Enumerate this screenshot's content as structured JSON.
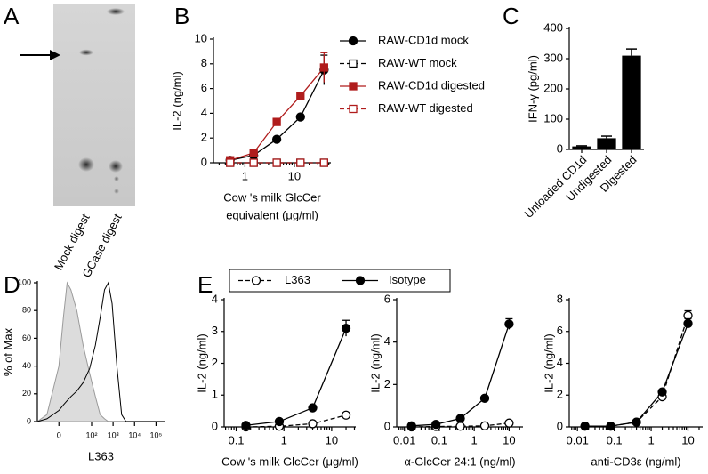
{
  "panel_a": {
    "panel_label": "A",
    "lanes": [
      "Mock digest",
      "GCase digest"
    ]
  },
  "chart_data": [
    {
      "type": "line",
      "panel_label": "B",
      "ylabel": "IL-2 (ng/ml)",
      "xlabel": [
        "Cow 's milk GlcCer",
        "equivalent (μg/ml)"
      ],
      "xscale": "log",
      "xlim": [
        0.23,
        55
      ],
      "xticks": [
        1,
        10
      ],
      "ylim": [
        0,
        10
      ],
      "yticks": [
        0,
        2,
        4,
        6,
        8,
        10
      ],
      "legend": "right",
      "x": [
        0.5,
        1.5,
        4.4,
        13.3,
        40
      ],
      "series": [
        {
          "name": "RAW-CD1d mock",
          "color": "#000000",
          "marker": "circle",
          "filled": true,
          "line_style": "solid",
          "values": [
            0.2,
            0.6,
            1.9,
            3.7,
            7.5
          ],
          "errors": [
            null,
            null,
            null,
            null,
            1.2
          ]
        },
        {
          "name": "RAW-WT mock",
          "color": "#000000",
          "marker": "square",
          "filled": false,
          "line_style": "dashed",
          "values": [
            0,
            0,
            0,
            0,
            0
          ],
          "errors": [
            null,
            null,
            null,
            null,
            null
          ]
        },
        {
          "name": "RAW-CD1d digested",
          "color": "#b01c1c",
          "marker": "square",
          "filled": true,
          "line_style": "solid",
          "values": [
            0.2,
            0.8,
            3.3,
            5.4,
            7.7
          ],
          "errors": [
            null,
            null,
            null,
            null,
            1.2
          ]
        },
        {
          "name": "RAW-WT digested",
          "color": "#b01c1c",
          "marker": "square",
          "filled": false,
          "line_style": "dashed",
          "values": [
            0,
            0,
            0,
            0,
            0
          ],
          "errors": [
            null,
            null,
            null,
            null,
            null
          ]
        }
      ]
    },
    {
      "type": "bar",
      "panel_label": "C",
      "ylabel": "IFN-γ (pg/ml)",
      "categories": [
        "Unloaded CD1d",
        "Undigested",
        "Digested"
      ],
      "values": [
        10,
        37,
        310
      ],
      "errors": [
        2,
        7,
        22
      ],
      "color": "#000000",
      "ylim": [
        0,
        400
      ],
      "yticks": [
        0,
        100,
        200,
        300,
        400
      ]
    },
    {
      "type": "area",
      "panel_label": "D",
      "ylabel": "% of Max",
      "xlabel": "L363",
      "xscale": "asinh",
      "xlim": [
        -30,
        250000
      ],
      "xticks": [
        0,
        {
          "value": 100,
          "label": "10²"
        },
        {
          "value": 1000,
          "label": "10³"
        },
        {
          "value": 10000,
          "label": "10⁴"
        },
        {
          "value": 100000,
          "label": "10⁵"
        }
      ],
      "ylim": [
        0,
        100
      ],
      "yticks": [
        0,
        20,
        40,
        60,
        80,
        100
      ],
      "x": [
        -30,
        -10,
        0,
        3,
        6,
        10,
        20,
        40,
        80,
        150,
        250,
        400,
        600,
        900,
        1500,
        2500,
        4000
      ],
      "series": [
        {
          "color": "#9a9a9a",
          "fill": "#dcdcdc",
          "values": [
            0,
            5,
            40,
            75,
            100,
            95,
            80,
            55,
            35,
            18,
            5,
            2,
            0,
            0,
            0,
            0,
            0
          ]
        },
        {
          "color": "#000000",
          "fill": "none",
          "values": [
            0,
            2,
            8,
            12,
            15,
            18,
            22,
            28,
            38,
            55,
            75,
            95,
            100,
            85,
            40,
            5,
            0
          ]
        }
      ]
    },
    {
      "type": "line",
      "panel_label": "E",
      "ylabel": "IL-2 (ng/ml)",
      "xlabel": "Cow 's milk GlcCer (μg/ml)",
      "xscale": "log",
      "xlim": [
        0.056,
        32
      ],
      "xticks": [
        0.1,
        1,
        10
      ],
      "ylim": [
        0,
        4
      ],
      "yticks": [
        0,
        1,
        2,
        3,
        4
      ],
      "legend": "top",
      "x": [
        0.16,
        0.8,
        4,
        20
      ],
      "series": [
        {
          "name": "L363",
          "color": "#000000",
          "marker": "circle",
          "filled": false,
          "line_style": "dashed",
          "values": [
            0.0,
            0.02,
            0.1,
            0.37
          ],
          "errors": [
            null,
            null,
            null,
            null
          ]
        },
        {
          "name": "Isotype",
          "color": "#000000",
          "marker": "circle",
          "filled": true,
          "line_style": "solid",
          "values": [
            0.05,
            0.17,
            0.6,
            3.1
          ],
          "errors": [
            null,
            null,
            null,
            0.25
          ]
        }
      ]
    },
    {
      "type": "line",
      "ylabel": "IL-2 (ng/ml)",
      "xlabel": "α-GlcCer 24:1 (ng/ml)",
      "xscale": "log",
      "xlim": [
        0.006,
        25
      ],
      "xticks": [
        0.01,
        0.1,
        1,
        10
      ],
      "ylim": [
        0,
        6
      ],
      "yticks": [
        0,
        2,
        4,
        6
      ],
      "x": [
        0.016,
        0.08,
        0.4,
        2,
        10
      ],
      "series": [
        {
          "color": "#000000",
          "marker": "circle",
          "filled": false,
          "line_style": "dashed",
          "values": [
            0.0,
            0.02,
            0.03,
            0.05,
            0.18
          ],
          "errors": [
            null,
            null,
            null,
            null,
            null
          ]
        },
        {
          "color": "#000000",
          "marker": "circle",
          "filled": true,
          "line_style": "solid",
          "values": [
            0.05,
            0.12,
            0.4,
            1.35,
            4.85
          ],
          "errors": [
            null,
            null,
            null,
            null,
            0.25
          ]
        }
      ]
    },
    {
      "type": "line",
      "ylabel": "IL-2 (ng/ml)",
      "xlabel": "anti-CD3ε (ng/ml)",
      "xscale": "log",
      "xlim": [
        0.006,
        25
      ],
      "xticks": [
        0.01,
        0.1,
        1,
        10
      ],
      "ylim": [
        0,
        8
      ],
      "yticks": [
        0,
        2,
        4,
        6,
        8
      ],
      "x": [
        0.016,
        0.08,
        0.4,
        2,
        10
      ],
      "series": [
        {
          "color": "#000000",
          "marker": "circle",
          "filled": false,
          "line_style": "dashed",
          "values": [
            0.05,
            0.05,
            0.3,
            1.9,
            7.0
          ],
          "errors": [
            null,
            null,
            null,
            null,
            0.3
          ]
        },
        {
          "color": "#000000",
          "marker": "circle",
          "filled": true,
          "line_style": "solid",
          "values": [
            0.05,
            0.05,
            0.3,
            2.2,
            6.5
          ],
          "errors": [
            null,
            null,
            null,
            null,
            0.3
          ]
        }
      ]
    }
  ]
}
